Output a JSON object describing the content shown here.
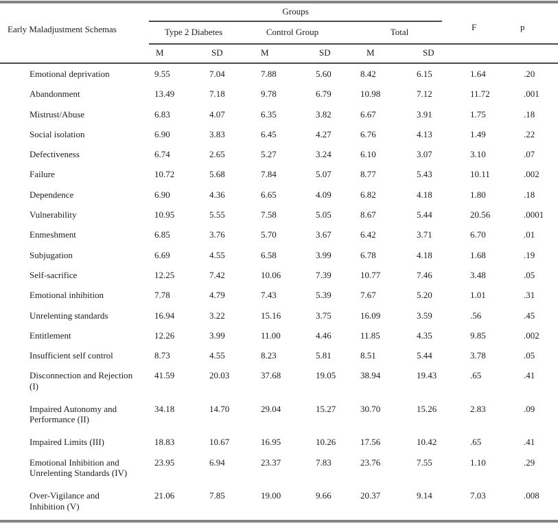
{
  "table": {
    "schema_column_header": "Early Maladjustment Schemas",
    "groups_header": "Groups",
    "group_columns": [
      "Type 2 Diabetes",
      "Control Group",
      "Total"
    ],
    "stat_headers": [
      "M",
      "SD"
    ],
    "f_header": "F",
    "p_header": "p",
    "rows": [
      {
        "label": "Emotional deprivation",
        "values": [
          "9.55",
          "7.04",
          "7.88",
          "5.60",
          "8.42",
          "6.15",
          "1.64",
          ".20"
        ]
      },
      {
        "label": "Abandonment",
        "values": [
          "13.49",
          "7.18",
          "9.78",
          "6.79",
          "10.98",
          "7.12",
          "11.72",
          ".001"
        ]
      },
      {
        "label": "Mistrust/Abuse",
        "values": [
          "6.83",
          "4.07",
          "6.35",
          "3.82",
          "6.67",
          "3.91",
          "1.75",
          ".18"
        ]
      },
      {
        "label": "Social isolation",
        "values": [
          "6.90",
          "3.83",
          "6.45",
          "4.27",
          "6.76",
          "4.13",
          "1.49",
          ".22"
        ]
      },
      {
        "label": "Defectiveness",
        "values": [
          "6.74",
          "2.65",
          "5.27",
          "3.24",
          "6.10",
          "3.07",
          "3.10",
          ".07"
        ]
      },
      {
        "label": "Failure",
        "values": [
          "10.72",
          "5.68",
          "7.84",
          "5.07",
          "8.77",
          "5.43",
          "10.11",
          ".002"
        ]
      },
      {
        "label": "Dependence",
        "values": [
          "6.90",
          "4.36",
          "6.65",
          "4.09",
          "6.82",
          "4.18",
          "1.80",
          ".18"
        ]
      },
      {
        "label": "Vulnerability",
        "values": [
          "10.95",
          "5.55",
          "7.58",
          "5.05",
          "8.67",
          "5.44",
          "20.56",
          ".0001"
        ]
      },
      {
        "label": "Enmeshment",
        "values": [
          "6.85",
          "3.76",
          "5.70",
          "3.67",
          "6.42",
          "3.71",
          "6.70",
          ".01"
        ]
      },
      {
        "label": "Subjugation",
        "values": [
          "6.69",
          "4.55",
          "6.58",
          "3.99",
          "6.78",
          "4.18",
          "1.68",
          ".19"
        ]
      },
      {
        "label": "Self-sacrifice",
        "values": [
          "12.25",
          "7.42",
          "10.06",
          "7.39",
          "10.77",
          "7.46",
          "3.48",
          ".05"
        ]
      },
      {
        "label": "Emotional inhibition",
        "values": [
          "7.78",
          "4.79",
          "7.43",
          "5.39",
          "7.67",
          "5.20",
          "1.01",
          ".31"
        ]
      },
      {
        "label": "Unrelenting standards",
        "values": [
          "16.94",
          "3.22",
          "15.16",
          "3.75",
          "16.09",
          "3.59",
          ".56",
          ".45"
        ]
      },
      {
        "label": "Entitlement",
        "values": [
          "12.26",
          "3.99",
          "11.00",
          "4.46",
          "11.85",
          "4.35",
          "9.85",
          ".002"
        ]
      },
      {
        "label": "Insufficient self control",
        "values": [
          "8.73",
          "4.55",
          "8.23",
          "5.81",
          "8.51",
          "5.44",
          "3.78",
          ".05"
        ]
      },
      {
        "label": "Disconnection and Rejection\n(I)",
        "values": [
          "41.59",
          "20.03",
          "37.68",
          "19.05",
          "38.94",
          "19.43",
          ".65",
          ".41"
        ]
      },
      {
        "label": "Impaired Autonomy and\nPerformance (II)",
        "values": [
          "34.18",
          "14.70",
          "29.04",
          "15.27",
          "30.70",
          "15.26",
          "2.83",
          ".09"
        ]
      },
      {
        "label": "Impaired Limits (III)",
        "values": [
          "18.83",
          "10.67",
          "16.95",
          "10.26",
          "17.56",
          "10.42",
          ".65",
          ".41"
        ]
      },
      {
        "label": "Emotional Inhibition and\nUnrelenting Standards (IV)",
        "values": [
          "23.95",
          "6.94",
          "23.37",
          "7.83",
          "23.76",
          "7.55",
          "1.10",
          ".29"
        ]
      },
      {
        "label": "Over-Vigilance and\nInhibition (V)",
        "values": [
          "21.06",
          "7.85",
          "19.00",
          "9.66",
          "20.37",
          "9.14",
          "7.03",
          ".008"
        ]
      }
    ]
  }
}
